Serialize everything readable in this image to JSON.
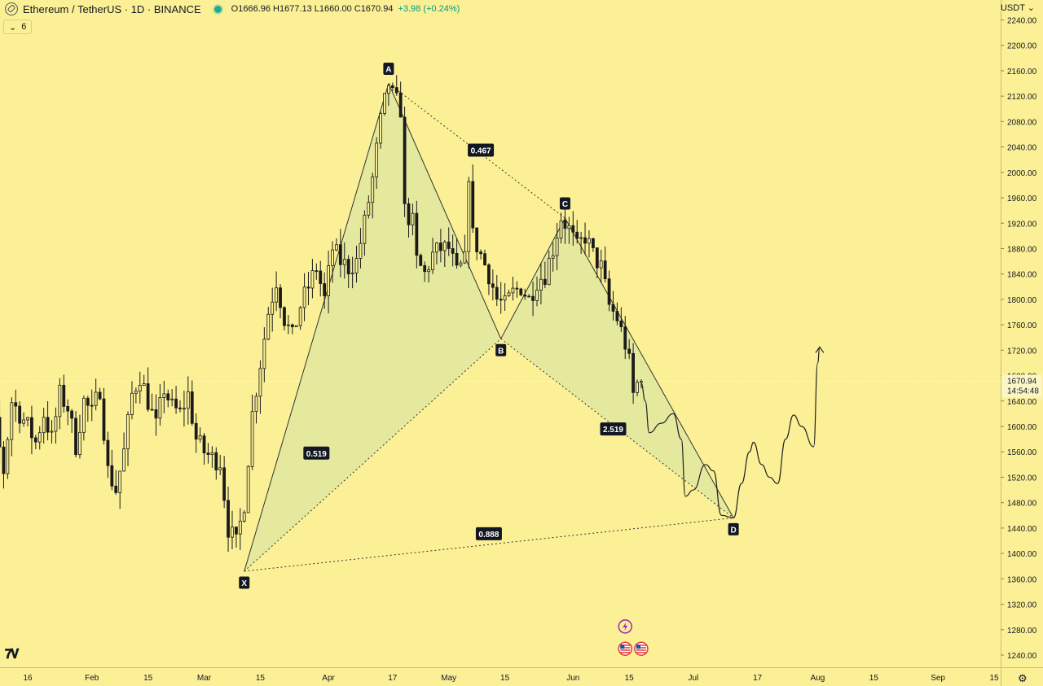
{
  "header": {
    "symbol": "Ethereum / TetherUS · 1D · BINANCE",
    "ohlc": "O1666.96 H1677.13 L1660.00 C1670.94",
    "change": "+3.98 (+0.24%)",
    "indicator_label": "6"
  },
  "axis": {
    "currency": "USDT",
    "price_ticks": [
      "2240.00",
      "2200.00",
      "2160.00",
      "2120.00",
      "2080.00",
      "2040.00",
      "2000.00",
      "1960.00",
      "1920.00",
      "1880.00",
      "1840.00",
      "1800.00",
      "1760.00",
      "1720.00",
      "1680.00",
      "1640.00",
      "1600.00",
      "1560.00",
      "1520.00",
      "1480.00",
      "1440.00",
      "1400.00",
      "1360.00",
      "1320.00",
      "1280.00",
      "1240.00"
    ],
    "last_price": "1670.94",
    "countdown": "14:54:48",
    "time_ticks": [
      "16",
      "Feb",
      "15",
      "Mar",
      "15",
      "Apr",
      "17",
      "May",
      "15",
      "Jun",
      "15",
      "Jul",
      "17",
      "Aug",
      "15",
      "Sep",
      "15"
    ]
  },
  "colors": {
    "background": "#fbf096",
    "pattern_fill": "#e4e89d",
    "candle": "#1a1a1a",
    "line": "#333333",
    "label_bg": "#131722"
  },
  "chart_data": {
    "type": "candlestick",
    "title": "Ethereum / TetherUS · 1D · BINANCE",
    "ylim": [
      1210,
      2260
    ],
    "x_range_days": [
      -16,
      228
    ],
    "x_ticks": [
      {
        "day": 0,
        "label": "16"
      },
      {
        "day": 16,
        "label": "Feb"
      },
      {
        "day": 30,
        "label": "15"
      },
      {
        "day": 44,
        "label": "Mar"
      },
      {
        "day": 58,
        "label": "15"
      },
      {
        "day": 75,
        "label": "Apr"
      },
      {
        "day": 91,
        "label": "17"
      },
      {
        "day": 105,
        "label": "May"
      },
      {
        "day": 119,
        "label": "15"
      },
      {
        "day": 136,
        "label": "Jun"
      },
      {
        "day": 150,
        "label": "15"
      },
      {
        "day": 166,
        "label": "Jul"
      },
      {
        "day": 182,
        "label": "17"
      },
      {
        "day": 197,
        "label": "Aug"
      },
      {
        "day": 211,
        "label": "15"
      },
      {
        "day": 227,
        "label": "Sep"
      },
      {
        "day": 241,
        "label": "15"
      }
    ],
    "y_ticks": [
      2240,
      2200,
      2160,
      2120,
      2080,
      2040,
      2000,
      1960,
      1920,
      1880,
      1840,
      1800,
      1760,
      1720,
      1680,
      1640,
      1600,
      1560,
      1520,
      1480,
      1440,
      1400,
      1360,
      1320,
      1280,
      1240
    ],
    "last_close": 1670.94,
    "price_path": [
      [
        -16,
        1322
      ],
      [
        -14,
        1400
      ],
      [
        -12,
        1480
      ],
      [
        -10,
        1575
      ],
      [
        -8,
        1600
      ],
      [
        -6,
        1530
      ],
      [
        -4,
        1640
      ],
      [
        -2,
        1620
      ],
      [
        0,
        1600
      ],
      [
        2,
        1575
      ],
      [
        4,
        1620
      ],
      [
        6,
        1580
      ],
      [
        8,
        1650
      ],
      [
        10,
        1630
      ],
      [
        12,
        1570
      ],
      [
        14,
        1640
      ],
      [
        16,
        1620
      ],
      [
        18,
        1660
      ],
      [
        20,
        1530
      ],
      [
        22,
        1500
      ],
      [
        24,
        1560
      ],
      [
        26,
        1650
      ],
      [
        28,
        1680
      ],
      [
        30,
        1640
      ],
      [
        32,
        1600
      ],
      [
        34,
        1660
      ],
      [
        36,
        1630
      ],
      [
        38,
        1620
      ],
      [
        40,
        1650
      ],
      [
        42,
        1580
      ],
      [
        44,
        1560
      ],
      [
        46,
        1550
      ],
      [
        48,
        1545
      ],
      [
        50,
        1440
      ],
      [
        52,
        1415
      ],
      [
        54,
        1480
      ],
      [
        56,
        1620
      ],
      [
        58,
        1700
      ],
      [
        60,
        1780
      ],
      [
        62,
        1830
      ],
      [
        64,
        1770
      ],
      [
        66,
        1740
      ],
      [
        68,
        1790
      ],
      [
        70,
        1820
      ],
      [
        72,
        1850
      ],
      [
        74,
        1800
      ],
      [
        76,
        1880
      ],
      [
        78,
        1860
      ],
      [
        80,
        1850
      ],
      [
        82,
        1860
      ],
      [
        84,
        1920
      ],
      [
        86,
        1990
      ],
      [
        88,
        2080
      ],
      [
        89,
        2110
      ],
      [
        90,
        2140
      ],
      [
        91,
        2120
      ],
      [
        93,
        2100
      ],
      [
        94,
        1940
      ],
      [
        96,
        1920
      ],
      [
        97,
        1860
      ],
      [
        99,
        1840
      ],
      [
        101,
        1870
      ],
      [
        103,
        1880
      ],
      [
        105,
        1880
      ],
      [
        107,
        1840
      ],
      [
        109,
        1860
      ],
      [
        110,
        2000
      ],
      [
        111,
        1900
      ],
      [
        113,
        1870
      ],
      [
        115,
        1840
      ],
      [
        117,
        1800
      ],
      [
        119,
        1790
      ],
      [
        121,
        1810
      ],
      [
        123,
        1820
      ],
      [
        125,
        1800
      ],
      [
        127,
        1830
      ],
      [
        129,
        1840
      ],
      [
        131,
        1880
      ],
      [
        133,
        1930
      ],
      [
        135,
        1910
      ],
      [
        137,
        1880
      ],
      [
        139,
        1900
      ],
      [
        141,
        1870
      ],
      [
        143,
        1850
      ],
      [
        145,
        1790
      ],
      [
        147,
        1770
      ],
      [
        149,
        1730
      ],
      [
        150,
        1700
      ],
      [
        151,
        1650
      ],
      [
        152,
        1666.96
      ],
      [
        153,
        1670.94
      ]
    ],
    "harmonic_pattern": {
      "points": [
        {
          "label": "X",
          "day": 54,
          "price": 1372
        },
        {
          "label": "A",
          "day": 90,
          "price": 2140
        },
        {
          "label": "B",
          "day": 118,
          "price": 1738
        },
        {
          "label": "C",
          "day": 134,
          "price": 1928
        },
        {
          "label": "D",
          "day": 176,
          "price": 1456
        }
      ],
      "ratios": [
        {
          "value": "0.519",
          "day": 72,
          "price": 1558
        },
        {
          "value": "0.467",
          "day": 113,
          "price": 2035
        },
        {
          "value": "2.519",
          "day": 146,
          "price": 1596
        },
        {
          "value": "0.888",
          "day": 115,
          "price": 1431
        }
      ]
    },
    "projection_path": [
      [
        153,
        1668
      ],
      [
        154,
        1640
      ],
      [
        155,
        1590
      ],
      [
        158,
        1605
      ],
      [
        161,
        1620
      ],
      [
        163,
        1580
      ],
      [
        164,
        1490
      ],
      [
        166,
        1500
      ],
      [
        169,
        1540
      ],
      [
        171,
        1530
      ],
      [
        173,
        1460
      ],
      [
        176,
        1456
      ],
      [
        178,
        1510
      ],
      [
        180,
        1560
      ],
      [
        181,
        1575
      ],
      [
        183,
        1540
      ],
      [
        185,
        1520
      ],
      [
        187,
        1510
      ],
      [
        189,
        1580
      ],
      [
        191,
        1618
      ],
      [
        193,
        1600
      ],
      [
        196,
        1568
      ],
      [
        197,
        1700
      ],
      [
        197.5,
        1725
      ]
    ],
    "event_icons": [
      {
        "day": 149,
        "price": 1285,
        "kind": "lightning-icon"
      },
      {
        "day": 149,
        "price": 1250,
        "kind": "us-flag-icon"
      },
      {
        "day": 153,
        "price": 1250,
        "kind": "us-flag-icon"
      }
    ]
  }
}
